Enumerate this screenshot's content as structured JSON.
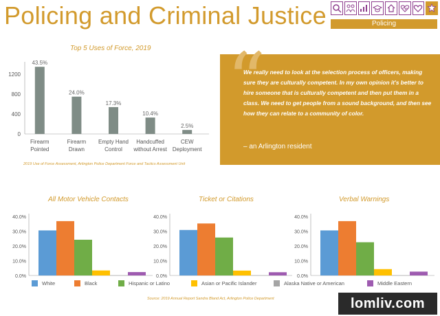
{
  "page_title": "Policing and Criminal Justice",
  "nav": {
    "icons": [
      "search-icon",
      "people-icon",
      "income-icon",
      "education-icon",
      "home-icon",
      "health-icon",
      "heart-icon",
      "policing-badge-icon"
    ],
    "active": "Policing"
  },
  "colors": {
    "accent": "#d29a2c",
    "icon_border": "#8d3d8d",
    "white": "#5b9bd5",
    "black": "#ed7d31",
    "hispanic": "#70ad47",
    "asian": "#ffc000",
    "alaska": "#a5a5a5",
    "middle_eastern": "#9e5bb0",
    "force_bars": "#7f8c86"
  },
  "quote": {
    "text": "We really need to look at the selection process of officers, making sure they are culturally competent. In my own opinion it's better to hire someone that is culturally competent and then put them in a class. We need to get people from a sound background, and then see how they can relate to a community of color.",
    "attribution": "– an Arlington resident"
  },
  "legend": [
    "White",
    "Black",
    "Hispanic or Latino",
    "Asian or Pacific Islander",
    "Alaska Native or American",
    "Middle Eastern"
  ],
  "sources": {
    "force": "2019 Use of Force Assessment, Arlington Police Department Force and Tactics Assessment Unit",
    "contacts": "Source: 2019 Annual Report Sandra Bland Act, Arlington Police Department"
  },
  "watermark": "lomliv.com",
  "chart_data": [
    {
      "type": "bar",
      "title": "Top 5 Uses of Force, 2019",
      "categories": [
        "Firearm\nPointed",
        "Firearm\nDrawn",
        "Empty Hand\nControl",
        "Handcuffed\nwithout Arrest",
        "CEW\nDeployment"
      ],
      "values": [
        1350,
        750,
        540,
        330,
        80
      ],
      "data_labels": [
        "43.5%",
        "24.0%",
        "17.3%",
        "10.4%",
        "2.5%"
      ],
      "yticks": [
        "0",
        "400",
        "800",
        "1200"
      ],
      "ylim": [
        0,
        1450
      ]
    },
    {
      "type": "bar",
      "title": "All Motor Vehicle Contacts",
      "categories": [
        "White",
        "Black",
        "Hispanic or Latino",
        "Asian or Pacific Islander",
        "Alaska Native or American",
        "Middle Eastern"
      ],
      "values": [
        30.5,
        36.8,
        24.2,
        3.4,
        0.1,
        2.3
      ],
      "yticks": [
        "0.0%",
        "10.0%",
        "20.0%",
        "30.0%",
        "40.0%"
      ],
      "ylim": [
        0,
        40
      ]
    },
    {
      "type": "bar",
      "title": "Ticket or Citations",
      "categories": [
        "White",
        "Black",
        "Hispanic or Latino",
        "Asian or Pacific Islander",
        "Alaska Native or American",
        "Middle Eastern"
      ],
      "values": [
        30.8,
        35.2,
        25.7,
        3.3,
        0.1,
        2.2
      ],
      "yticks": [
        "0.0%",
        "10.0%",
        "20.0%",
        "30.0%",
        "40.0%"
      ],
      "ylim": [
        0,
        40
      ]
    },
    {
      "type": "bar",
      "title": "Verbal Warnings",
      "categories": [
        "White",
        "Black",
        "Hispanic or Latino",
        "Asian or Pacific Islander",
        "Alaska Native or American",
        "Middle Eastern"
      ],
      "values": [
        30.5,
        36.8,
        22.5,
        4.3,
        0.1,
        2.6
      ],
      "yticks": [
        "0.0%",
        "10.0%",
        "20.0%",
        "30.0%",
        "40.0%"
      ],
      "ylim": [
        0,
        40
      ]
    }
  ]
}
